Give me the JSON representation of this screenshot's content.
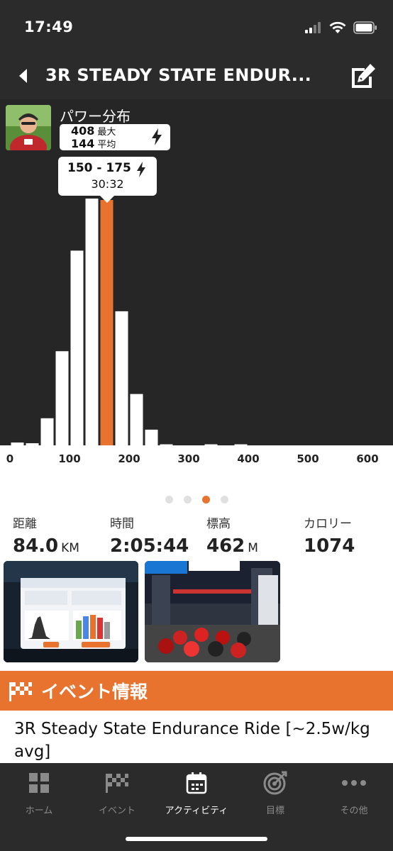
{
  "status_bar": {
    "time": "17:49"
  },
  "nav": {
    "title": "3R STEADY STATE ENDUR..."
  },
  "power": {
    "title": "パワー分布",
    "max_value": "408",
    "max_label": "最大",
    "avg_value": "144",
    "avg_label": "平均",
    "selected_range": "150 - 175",
    "selected_time": "30:32"
  },
  "chart_data": {
    "type": "bar",
    "title": "パワー分布",
    "xlabel": "",
    "ylabel": "",
    "x_ticks": [
      "0",
      "100",
      "200",
      "300",
      "400",
      "500",
      "600"
    ],
    "xlim": [
      0,
      600
    ],
    "bin_width": 25,
    "bin_starts": [
      0,
      25,
      50,
      75,
      100,
      125,
      150,
      175,
      200,
      225,
      250,
      275,
      300,
      325,
      350,
      375
    ],
    "values": [
      4,
      3,
      38,
      132,
      273,
      346,
      344,
      188,
      72,
      22,
      1,
      0,
      0,
      1,
      0,
      1
    ],
    "highlight_bin": 6,
    "highlight_color": "#e8732f",
    "bar_color": "#ffffff",
    "background_color": "#262626",
    "grid": false
  },
  "pager": {
    "count": 4,
    "active": 2
  },
  "metrics": [
    {
      "label": "距離",
      "value": "84.0",
      "unit": "KM"
    },
    {
      "label": "時間",
      "value": "2:05:44",
      "unit": ""
    },
    {
      "label": "標高",
      "value": "462",
      "unit": "M"
    },
    {
      "label": "カロリー",
      "value": "1074",
      "unit": ""
    }
  ],
  "event": {
    "header": "イベント情報",
    "name": "3R Steady State Endurance Ride [~2.5w/kg avg]"
  },
  "tabs": [
    {
      "label": "ホーム",
      "icon": "grid-icon"
    },
    {
      "label": "イベント",
      "icon": "checkered-flag-icon"
    },
    {
      "label": "アクティビティ",
      "icon": "calendar-icon"
    },
    {
      "label": "目標",
      "icon": "target-icon"
    },
    {
      "label": "その他",
      "icon": "more-dots-icon"
    }
  ],
  "colors": {
    "accent": "#e8732f",
    "dark": "#2b2b2b",
    "chart_bg": "#262626"
  }
}
